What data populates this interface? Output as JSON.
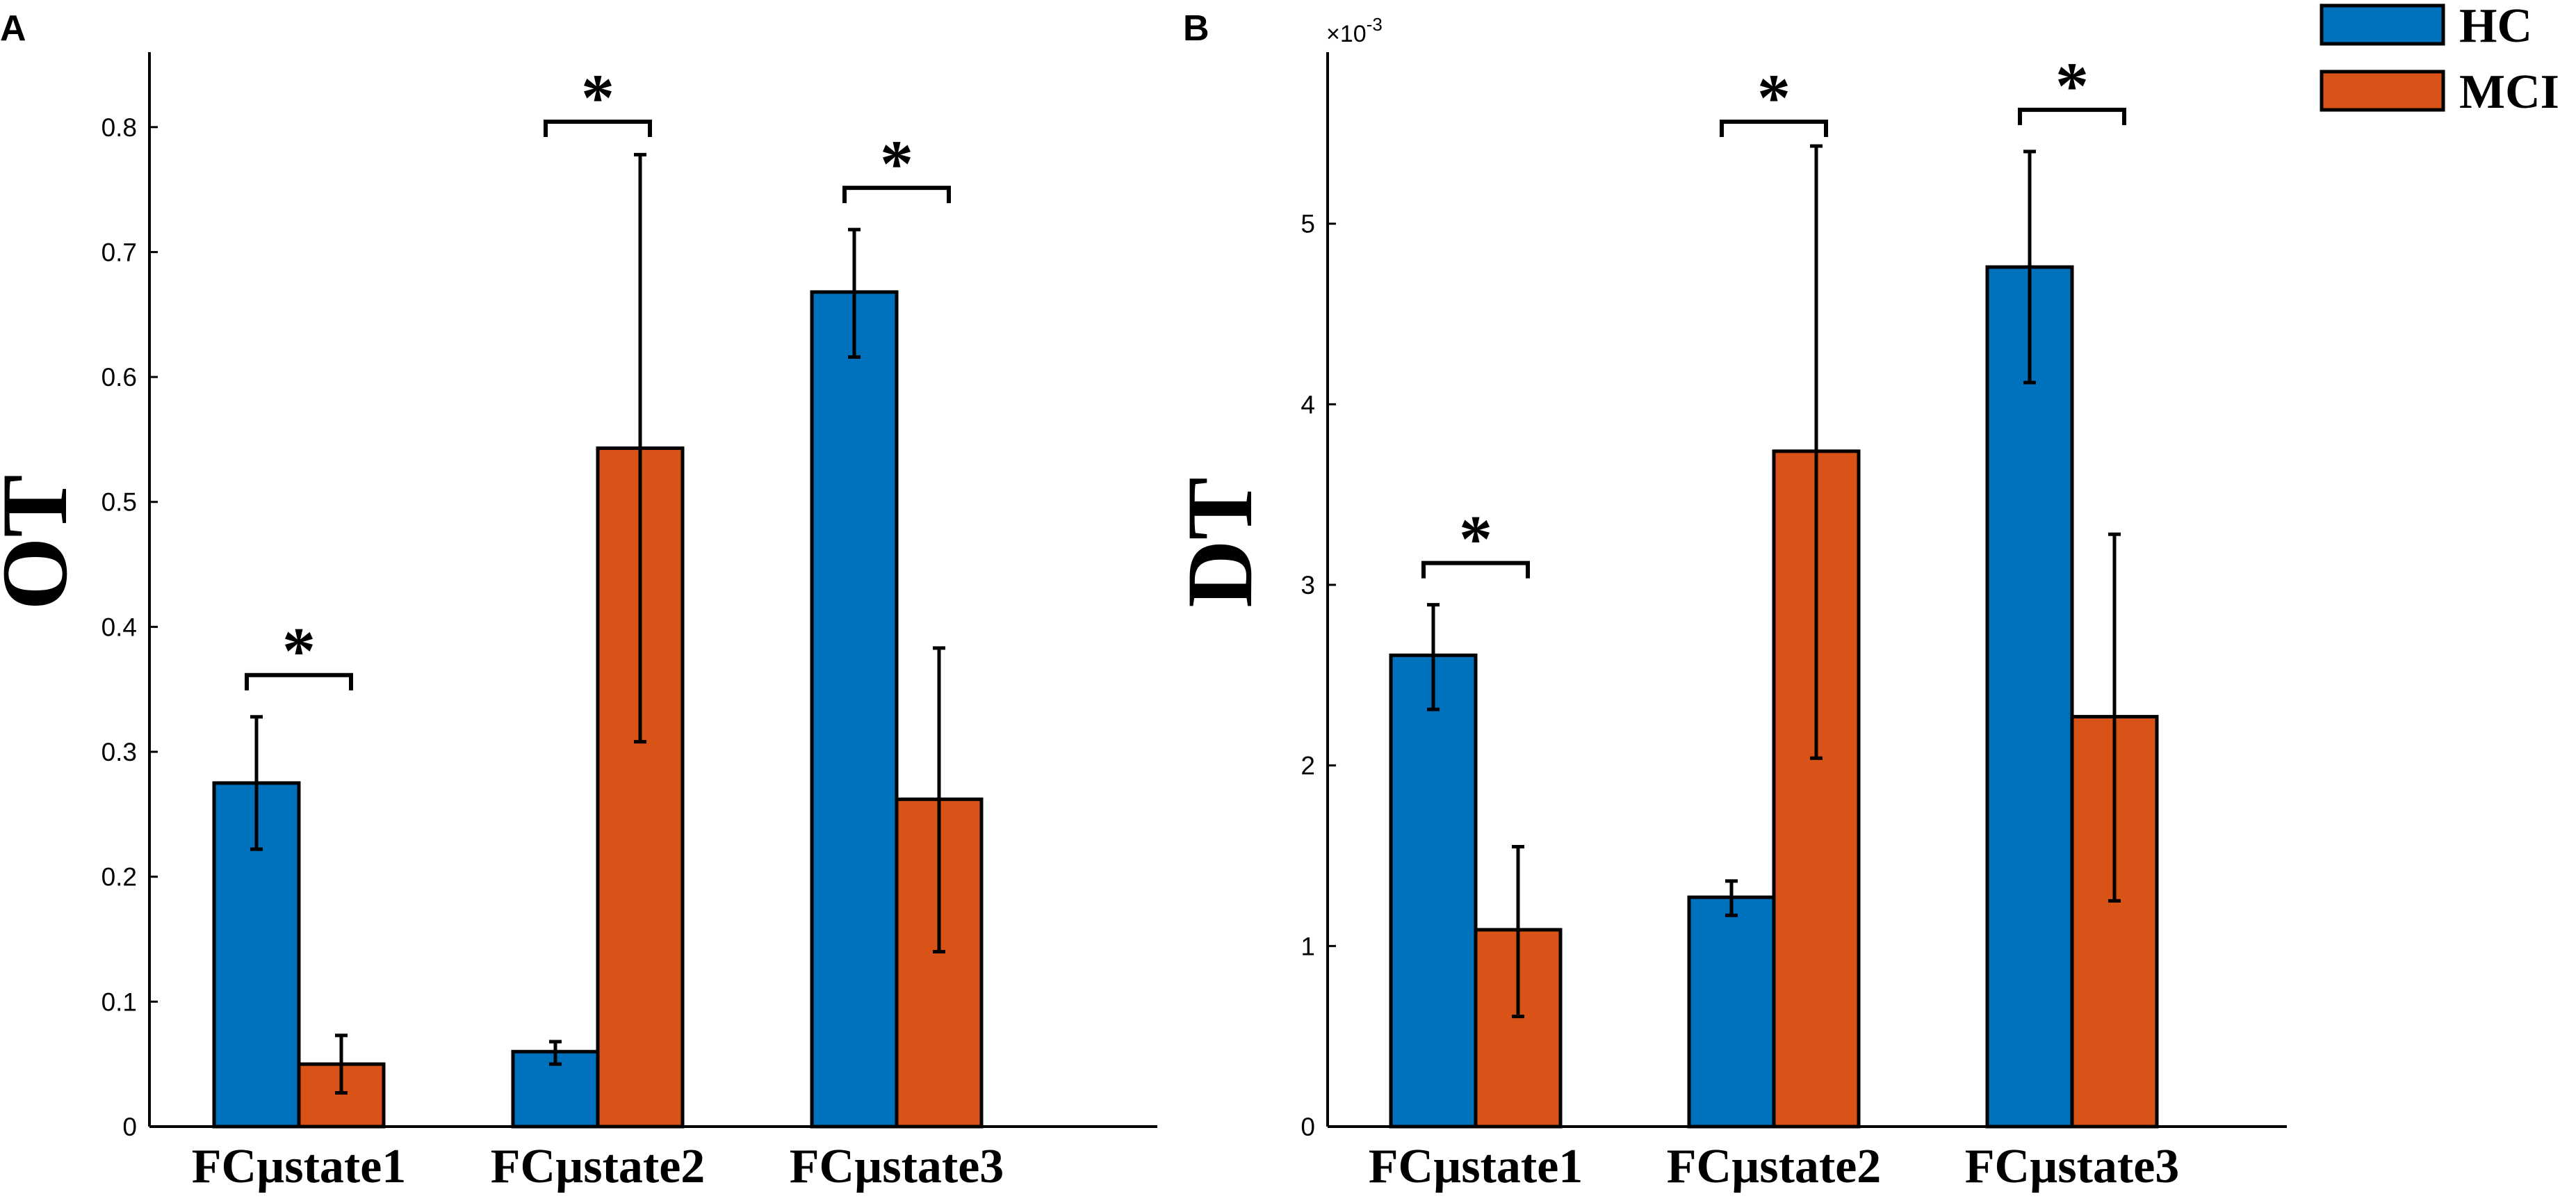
{
  "colors": {
    "HC": "#0072BD",
    "MCI": "#D95319",
    "edge": "#000000"
  },
  "legend": [
    {
      "name": "HC",
      "color": "#0072BD"
    },
    {
      "name": "MCI",
      "color": "#D95319"
    }
  ],
  "chart_data": [
    {
      "type": "bar",
      "panel": "A",
      "ylabel": "OT",
      "ylim": [
        0,
        0.86
      ],
      "yticks": [
        "0",
        "0.1",
        "0.2",
        "0.3",
        "0.4",
        "0.5",
        "0.6",
        "0.7",
        "0.8"
      ],
      "categories": [
        "FCµstate1",
        "FCµstate2",
        "FCµstate3"
      ],
      "series": [
        {
          "name": "HC",
          "values": [
            0.275,
            0.06,
            0.668
          ],
          "err_low": [
            0.222,
            0.05,
            0.616
          ],
          "err_high": [
            0.328,
            0.068,
            0.718
          ]
        },
        {
          "name": "MCI",
          "values": [
            0.05,
            0.543,
            0.262
          ],
          "err_low": [
            0.027,
            0.308,
            0.14
          ],
          "err_high": [
            0.073,
            0.778,
            0.383
          ]
        }
      ],
      "significance": [
        "*",
        "*",
        "*"
      ]
    },
    {
      "type": "bar",
      "panel": "B",
      "ylabel": "DT",
      "ylim": [
        0,
        5.95
      ],
      "scale_label": "×10",
      "scale_exp": "-3",
      "yticks": [
        "0",
        "1",
        "2",
        "3",
        "4",
        "5"
      ],
      "categories": [
        "FCµstate1",
        "FCµstate2",
        "FCµstate3"
      ],
      "series": [
        {
          "name": "HC",
          "values": [
            2.61,
            1.27,
            4.76
          ],
          "err_low": [
            2.31,
            1.17,
            4.12
          ],
          "err_high": [
            2.89,
            1.36,
            5.4
          ]
        },
        {
          "name": "MCI",
          "values": [
            1.09,
            3.74,
            2.27
          ],
          "err_low": [
            0.61,
            2.04,
            1.25
          ],
          "err_high": [
            1.55,
            5.43,
            3.28
          ]
        }
      ],
      "significance": [
        "*",
        "*",
        "*"
      ]
    }
  ]
}
